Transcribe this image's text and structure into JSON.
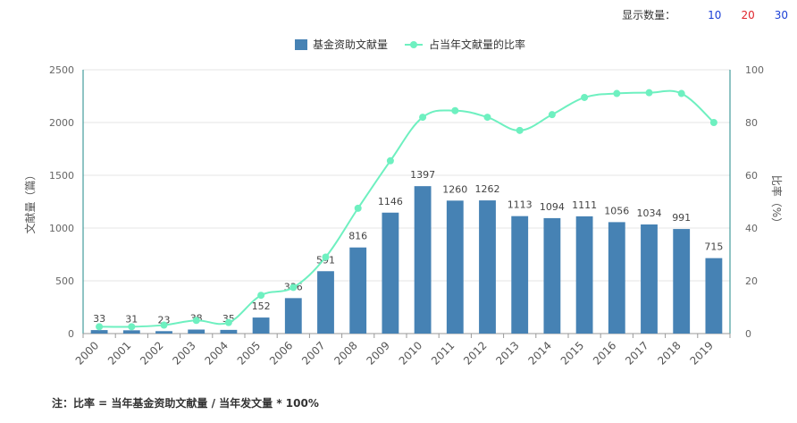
{
  "display_controls": {
    "label": "显示数量：",
    "options": [
      {
        "label": "10",
        "color": "#1a3fd6"
      },
      {
        "label": "20",
        "color": "#e0242b"
      },
      {
        "label": "30",
        "color": "#1a3fd6"
      }
    ]
  },
  "chart_data": {
    "type": "bar+line",
    "categories": [
      "2000",
      "2001",
      "2002",
      "2003",
      "2004",
      "2005",
      "2006",
      "2007",
      "2008",
      "2009",
      "2010",
      "2011",
      "2012",
      "2013",
      "2014",
      "2015",
      "2016",
      "2017",
      "2018",
      "2019"
    ],
    "series": [
      {
        "name": "基金资助文献量",
        "type": "bar",
        "axis": "left",
        "color": "#4682b4",
        "values": [
          33,
          31,
          23,
          38,
          35,
          152,
          336,
          591,
          816,
          1146,
          1397,
          1260,
          1262,
          1113,
          1094,
          1111,
          1056,
          1034,
          991,
          715
        ]
      },
      {
        "name": "占当年文献量的比率",
        "type": "line",
        "axis": "right",
        "color": "#6ef0c0",
        "values": [
          2.6,
          2.6,
          3.2,
          5.0,
          4.2,
          14.5,
          17.5,
          29.0,
          47.5,
          65.5,
          82.0,
          84.5,
          82.0,
          77.0,
          83.0,
          89.5,
          91.0,
          91.3,
          91.0,
          80.0
        ]
      }
    ],
    "y_left": {
      "label": "文献量（篇）",
      "range": [
        0,
        2500
      ],
      "ticks": [
        0,
        500,
        1000,
        1500,
        2000,
        2500
      ]
    },
    "y_right": {
      "label": "比率（%）",
      "range": [
        0,
        100
      ],
      "ticks": [
        0,
        20,
        40,
        60,
        80,
        100
      ]
    },
    "grid": true,
    "legend_position": "top-center"
  },
  "note": "注：比率 = 当年基金资助文献量 / 当年发文量 * 100%"
}
